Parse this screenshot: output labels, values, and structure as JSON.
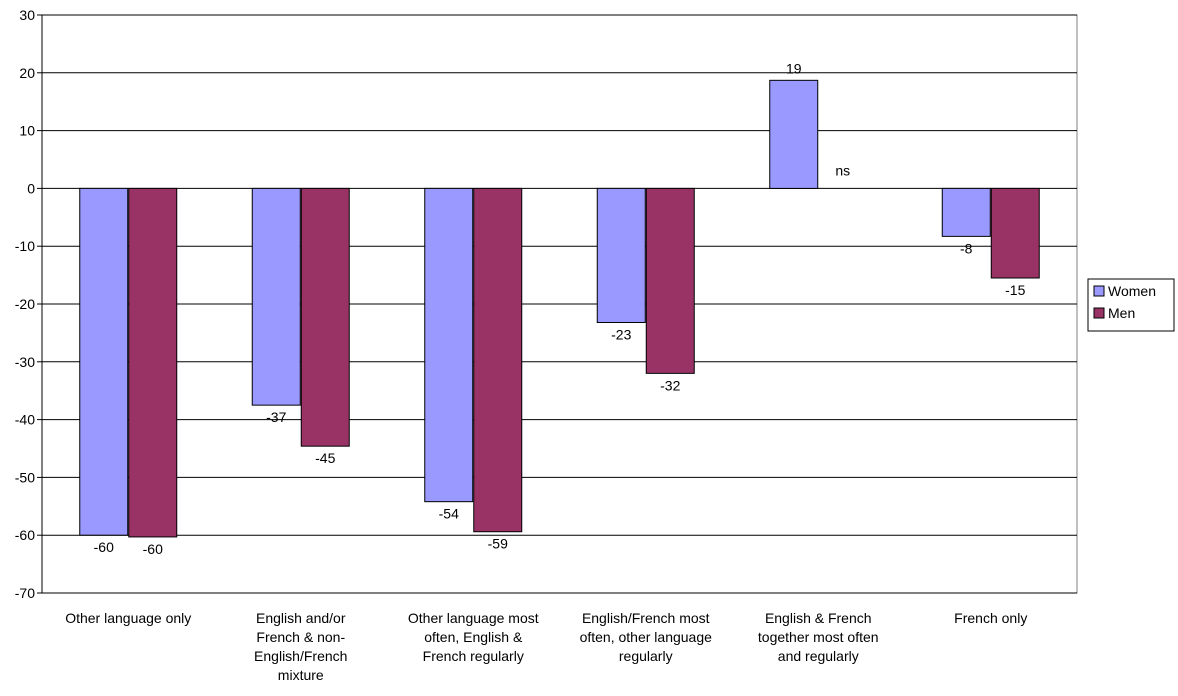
{
  "chart_data": {
    "type": "bar",
    "categories": [
      [
        "Other language only"
      ],
      [
        "English and/or",
        "French & non-",
        "English/French",
        "mixture"
      ],
      [
        "Other language most",
        "often, English &",
        "French regularly"
      ],
      [
        "English/French most",
        "often, other language",
        "regularly"
      ],
      [
        "English & French",
        "together most often",
        "and regularly"
      ],
      [
        "French only"
      ]
    ],
    "series": [
      {
        "name": "Women",
        "color": "#9999FF",
        "values": [
          -60,
          -37.5,
          -54.2,
          -23.2,
          18.7,
          -8.3
        ],
        "labels": [
          "-60",
          "-37",
          "-54",
          "-23",
          "19",
          "-8"
        ]
      },
      {
        "name": "Men",
        "color": "#993366",
        "values": [
          -60.3,
          -44.6,
          -59.4,
          -32,
          null,
          -15.5
        ],
        "labels": [
          "-60",
          "-45",
          "-59",
          "-32",
          "ns",
          "-15"
        ]
      }
    ],
    "ylim": [
      -70,
      30
    ],
    "yticks": [
      30,
      20,
      10,
      0,
      -10,
      -20,
      -30,
      -40,
      -50,
      -60,
      -70
    ],
    "grid": true,
    "legend": "right"
  }
}
